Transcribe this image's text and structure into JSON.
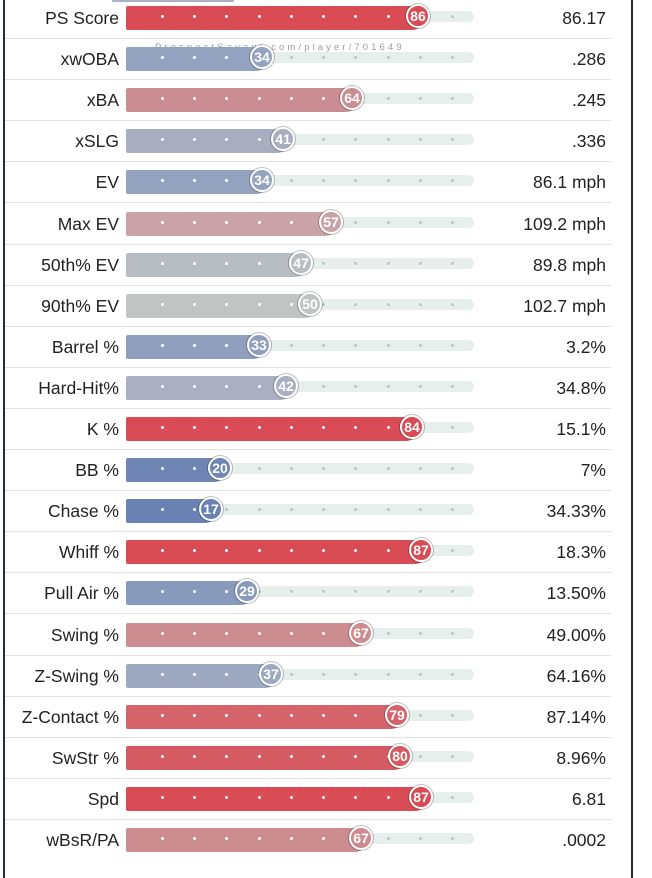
{
  "watermark": "ProspectSavant.com/player/701649",
  "metrics": [
    {
      "label": "PS Score",
      "percentile": 86,
      "percentile_text": "86",
      "value": "86.17",
      "color": "#d94b55"
    },
    {
      "label": "xwOBA",
      "percentile": 34,
      "percentile_text": "34",
      "value": ".286",
      "color": "#93a3bf"
    },
    {
      "label": "xBA",
      "percentile": 64,
      "percentile_text": "64",
      "value": ".245",
      "color": "#c98d92"
    },
    {
      "label": "xSLG",
      "percentile": 41,
      "percentile_text": "41",
      "value": ".336",
      "color": "#a8aec0"
    },
    {
      "label": "EV",
      "percentile": 34,
      "percentile_text": "34",
      "value": "86.1 mph",
      "color": "#93a3bf"
    },
    {
      "label": "Max EV",
      "percentile": 57,
      "percentile_text": "57",
      "value": "109.2 mph",
      "color": "#c9a3a7"
    },
    {
      "label": "50th% EV",
      "percentile": 47,
      "percentile_text": "47",
      "value": "89.8 mph",
      "color": "#b8bcc3"
    },
    {
      "label": "90th% EV",
      "percentile": 50,
      "percentile_text": "50",
      "value": "102.7 mph",
      "color": "#c2c3c3"
    },
    {
      "label": "Barrel %",
      "percentile": 33,
      "percentile_text": "33",
      "value": "3.2%",
      "color": "#8f9fbd"
    },
    {
      "label": "Hard-Hit%",
      "percentile": 42,
      "percentile_text": "42",
      "value": "34.8%",
      "color": "#aab0c1"
    },
    {
      "label": "K %",
      "percentile": 84,
      "percentile_text": "84",
      "value": "15.1%",
      "color": "#d94b55"
    },
    {
      "label": "BB %",
      "percentile": 20,
      "percentile_text": "20",
      "value": "7%",
      "color": "#6f86b4"
    },
    {
      "label": "Chase %",
      "percentile": 17,
      "percentile_text": "17",
      "value": "34.33%",
      "color": "#6a82b3"
    },
    {
      "label": "Whiff %",
      "percentile": 87,
      "percentile_text": "87",
      "value": "18.3%",
      "color": "#d94b55"
    },
    {
      "label": "Pull Air %",
      "percentile": 29,
      "percentile_text": "29",
      "value": "13.50%",
      "color": "#879abc"
    },
    {
      "label": "Swing %",
      "percentile": 67,
      "percentile_text": "67",
      "value": "49.00%",
      "color": "#cd8c90"
    },
    {
      "label": "Z-Swing %",
      "percentile": 37,
      "percentile_text": "37",
      "value": "64.16%",
      "color": "#9ca9c0"
    },
    {
      "label": "Z-Contact %",
      "percentile": 79,
      "percentile_text": "79",
      "value": "87.14%",
      "color": "#d4646a"
    },
    {
      "label": "SwStr %",
      "percentile": 80,
      "percentile_text": "80",
      "value": "8.96%",
      "color": "#d55a62"
    },
    {
      "label": "Spd",
      "percentile": 87,
      "percentile_text": "87",
      "value": "6.81",
      "color": "#d94b55"
    },
    {
      "label": "wBsR/PA",
      "percentile": 67,
      "percentile_text": "67",
      "value": ".0002",
      "color": "#cd8c90"
    }
  ]
}
